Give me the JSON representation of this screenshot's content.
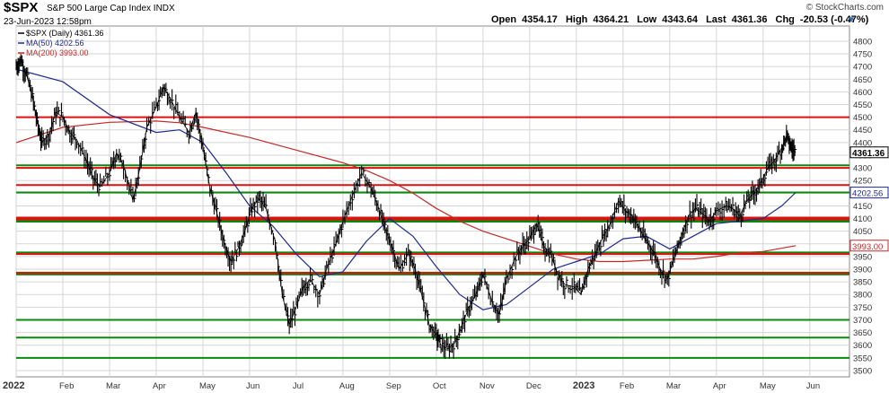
{
  "header": {
    "symbol": "$SPX",
    "subtitle": "S&P 500 Large Cap Index INDX",
    "date": "23-Jun-2023 12:58pm",
    "credit": "© StockCharts.com",
    "quote": {
      "open_label": "Open",
      "open": "4354.17",
      "high_label": "High",
      "high": "4364.21",
      "low_label": "Low",
      "low": "4343.64",
      "last_label": "Last",
      "last": "4361.36",
      "chg_label": "Chg",
      "chg": "-20.53 (-0.47%)"
    }
  },
  "legend": {
    "price": "$SPX (Daily) 4361.36",
    "ma50": "MA(50) 4202.56",
    "ma200": "MA(200) 3993.00"
  },
  "colors": {
    "price": "#000000",
    "ma50": "#1e2a8c",
    "ma200": "#c62828",
    "support_green": "#0a8a0a",
    "resistance_red": "#e01010",
    "grid": "#d6d6d6",
    "axis_label": "#333333"
  },
  "chart_data": {
    "type": "line",
    "title": "$SPX",
    "x_tick_labels": [
      "2022",
      "Feb",
      "Mar",
      "Apr",
      "May",
      "Jun",
      "Jul",
      "Aug",
      "Sep",
      "Oct",
      "Nov",
      "Dec",
      "2023",
      "Feb",
      "Mar",
      "Apr",
      "May",
      "Jun"
    ],
    "y_range": [
      3475,
      4860
    ],
    "y_ticks": [
      3500,
      3550,
      3600,
      3650,
      3700,
      3750,
      3800,
      3850,
      3900,
      3950,
      4000,
      4050,
      4100,
      4150,
      4200,
      4250,
      4300,
      4350,
      4400,
      4450,
      4500,
      4550,
      4600,
      4650,
      4700,
      4750,
      4800
    ],
    "y_tick_labels": [
      "3500",
      "3550",
      "3600",
      "3650",
      "3700",
      "3750",
      "3800",
      "3850",
      "3900",
      "3950",
      "4000",
      "4050",
      "4100",
      "4150",
      "4200",
      "4250",
      "4300",
      "4350",
      "4400",
      "4450",
      "4500",
      "4550",
      "4600",
      "4650",
      "4700",
      "4750",
      "4800"
    ],
    "x_unit": "trading months since start of 2022",
    "tick_positions": [
      0,
      1,
      2,
      3,
      4,
      5,
      6,
      7,
      8,
      9,
      10,
      11,
      12,
      13,
      14,
      15,
      16,
      17
    ],
    "x_range": [
      0,
      17.85
    ],
    "horizontal_lines": [
      {
        "value": 4500,
        "color": "red",
        "width": 2
      },
      {
        "value": 4310,
        "color": "green",
        "width": 2
      },
      {
        "value": 4300,
        "color": "red",
        "width": 2
      },
      {
        "value": 4232,
        "color": "red",
        "width": 2
      },
      {
        "value": 4203,
        "color": "green",
        "width": 2
      },
      {
        "value": 4093,
        "color": "green",
        "width": 5
      },
      {
        "value": 4100,
        "color": "red",
        "width": 4
      },
      {
        "value": 3966,
        "color": "green",
        "width": 2
      },
      {
        "value": 3960,
        "color": "red",
        "width": 2
      },
      {
        "value": 3883,
        "color": "green",
        "width": 4
      },
      {
        "value": 3885,
        "color": "red",
        "width": 2
      },
      {
        "value": 3700,
        "color": "green",
        "width": 2
      },
      {
        "value": 3630,
        "color": "green",
        "width": 2
      },
      {
        "value": 3550,
        "color": "green",
        "width": 2
      }
    ],
    "series": [
      {
        "name": "$SPX (Daily)",
        "points": [
          [
            0.0,
            4700
          ],
          [
            0.1,
            4726
          ],
          [
            0.22,
            4670
          ],
          [
            0.35,
            4577
          ],
          [
            0.45,
            4480
          ],
          [
            0.55,
            4400
          ],
          [
            0.7,
            4430
          ],
          [
            0.85,
            4520
          ],
          [
            1.0,
            4500
          ],
          [
            1.15,
            4440
          ],
          [
            1.3,
            4410
          ],
          [
            1.5,
            4330
          ],
          [
            1.65,
            4260
          ],
          [
            1.8,
            4225
          ],
          [
            2.0,
            4280
          ],
          [
            2.15,
            4360
          ],
          [
            2.3,
            4310
          ],
          [
            2.5,
            4170
          ],
          [
            2.65,
            4300
          ],
          [
            2.8,
            4460
          ],
          [
            3.0,
            4540
          ],
          [
            3.15,
            4620
          ],
          [
            3.3,
            4575
          ],
          [
            3.5,
            4500
          ],
          [
            3.7,
            4440
          ],
          [
            3.85,
            4520
          ],
          [
            4.0,
            4380
          ],
          [
            4.15,
            4220
          ],
          [
            4.3,
            4120
          ],
          [
            4.45,
            4010
          ],
          [
            4.6,
            3930
          ],
          [
            4.75,
            3980
          ],
          [
            4.9,
            4050
          ],
          [
            5.05,
            4140
          ],
          [
            5.2,
            4180
          ],
          [
            5.35,
            4140
          ],
          [
            5.55,
            4010
          ],
          [
            5.7,
            3800
          ],
          [
            5.85,
            3680
          ],
          [
            6.0,
            3750
          ],
          [
            6.15,
            3830
          ],
          [
            6.3,
            3860
          ],
          [
            6.5,
            3800
          ],
          [
            6.65,
            3900
          ],
          [
            6.85,
            4000
          ],
          [
            7.0,
            4090
          ],
          [
            7.2,
            4190
          ],
          [
            7.4,
            4280
          ],
          [
            7.6,
            4220
          ],
          [
            7.75,
            4150
          ],
          [
            7.9,
            4060
          ],
          [
            8.05,
            3990
          ],
          [
            8.2,
            3900
          ],
          [
            8.4,
            3960
          ],
          [
            8.55,
            3900
          ],
          [
            8.7,
            3790
          ],
          [
            8.85,
            3680
          ],
          [
            9.0,
            3640
          ],
          [
            9.1,
            3600
          ],
          [
            9.25,
            3585
          ],
          [
            9.4,
            3610
          ],
          [
            9.55,
            3680
          ],
          [
            9.7,
            3750
          ],
          [
            9.85,
            3800
          ],
          [
            10.0,
            3880
          ],
          [
            10.2,
            3770
          ],
          [
            10.35,
            3720
          ],
          [
            10.5,
            3860
          ],
          [
            10.7,
            3950
          ],
          [
            10.85,
            3990
          ],
          [
            11.0,
            4020
          ],
          [
            11.15,
            4080
          ],
          [
            11.3,
            3990
          ],
          [
            11.45,
            3960
          ],
          [
            11.6,
            3880
          ],
          [
            11.75,
            3840
          ],
          [
            11.95,
            3830
          ],
          [
            12.1,
            3800
          ],
          [
            12.25,
            3900
          ],
          [
            12.4,
            3960
          ],
          [
            12.55,
            4020
          ],
          [
            12.7,
            4070
          ],
          [
            12.9,
            4170
          ],
          [
            13.05,
            4130
          ],
          [
            13.2,
            4110
          ],
          [
            13.35,
            4060
          ],
          [
            13.5,
            4010
          ],
          [
            13.65,
            3970
          ],
          [
            13.8,
            3900
          ],
          [
            13.95,
            3860
          ],
          [
            14.1,
            3950
          ],
          [
            14.25,
            4030
          ],
          [
            14.4,
            4110
          ],
          [
            14.55,
            4140
          ],
          [
            14.7,
            4120
          ],
          [
            14.85,
            4090
          ],
          [
            15.0,
            4130
          ],
          [
            15.2,
            4150
          ],
          [
            15.35,
            4140
          ],
          [
            15.5,
            4110
          ],
          [
            15.65,
            4170
          ],
          [
            15.8,
            4200
          ],
          [
            15.95,
            4240
          ],
          [
            16.1,
            4300
          ],
          [
            16.25,
            4330
          ],
          [
            16.4,
            4380
          ],
          [
            16.5,
            4426
          ],
          [
            16.6,
            4380
          ],
          [
            16.7,
            4361
          ]
        ]
      },
      {
        "name": "MA(50)",
        "points": [
          [
            0.0,
            4690
          ],
          [
            1.0,
            4640
          ],
          [
            2.0,
            4510
          ],
          [
            3.0,
            4440
          ],
          [
            3.5,
            4450
          ],
          [
            4.0,
            4400
          ],
          [
            4.5,
            4280
          ],
          [
            5.0,
            4150
          ],
          [
            5.5,
            4070
          ],
          [
            6.0,
            3960
          ],
          [
            6.5,
            3870
          ],
          [
            7.0,
            3890
          ],
          [
            7.5,
            4010
          ],
          [
            8.0,
            4100
          ],
          [
            8.5,
            4030
          ],
          [
            9.0,
            3910
          ],
          [
            9.5,
            3800
          ],
          [
            10.0,
            3740
          ],
          [
            10.5,
            3760
          ],
          [
            11.0,
            3830
          ],
          [
            11.5,
            3900
          ],
          [
            12.0,
            3930
          ],
          [
            12.5,
            3960
          ],
          [
            13.0,
            4020
          ],
          [
            13.5,
            4030
          ],
          [
            14.0,
            3980
          ],
          [
            14.5,
            4030
          ],
          [
            15.0,
            4080
          ],
          [
            15.5,
            4090
          ],
          [
            16.0,
            4100
          ],
          [
            16.4,
            4150
          ],
          [
            16.7,
            4203
          ]
        ]
      },
      {
        "name": "MA(200)",
        "points": [
          [
            0.0,
            4400
          ],
          [
            1.0,
            4460
          ],
          [
            2.0,
            4480
          ],
          [
            3.0,
            4485
          ],
          [
            3.5,
            4478
          ],
          [
            4.0,
            4460
          ],
          [
            5.0,
            4420
          ],
          [
            6.0,
            4370
          ],
          [
            7.0,
            4320
          ],
          [
            7.5,
            4290
          ],
          [
            8.0,
            4250
          ],
          [
            8.5,
            4200
          ],
          [
            9.0,
            4140
          ],
          [
            9.5,
            4090
          ],
          [
            10.0,
            4050
          ],
          [
            10.5,
            4020
          ],
          [
            11.0,
            3990
          ],
          [
            11.5,
            3960
          ],
          [
            12.0,
            3940
          ],
          [
            12.5,
            3930
          ],
          [
            13.0,
            3930
          ],
          [
            13.5,
            3935
          ],
          [
            14.0,
            3940
          ],
          [
            14.5,
            3940
          ],
          [
            15.0,
            3950
          ],
          [
            15.5,
            3965
          ],
          [
            16.0,
            3970
          ],
          [
            16.7,
            3993
          ]
        ]
      }
    ],
    "last_value_labels": [
      {
        "value": 4361.36,
        "label": "4361.36",
        "series": "price"
      },
      {
        "value": 4202.56,
        "label": "4202.56",
        "series": "ma50"
      },
      {
        "value": 3993.0,
        "label": "3993.00",
        "series": "ma200"
      }
    ]
  }
}
